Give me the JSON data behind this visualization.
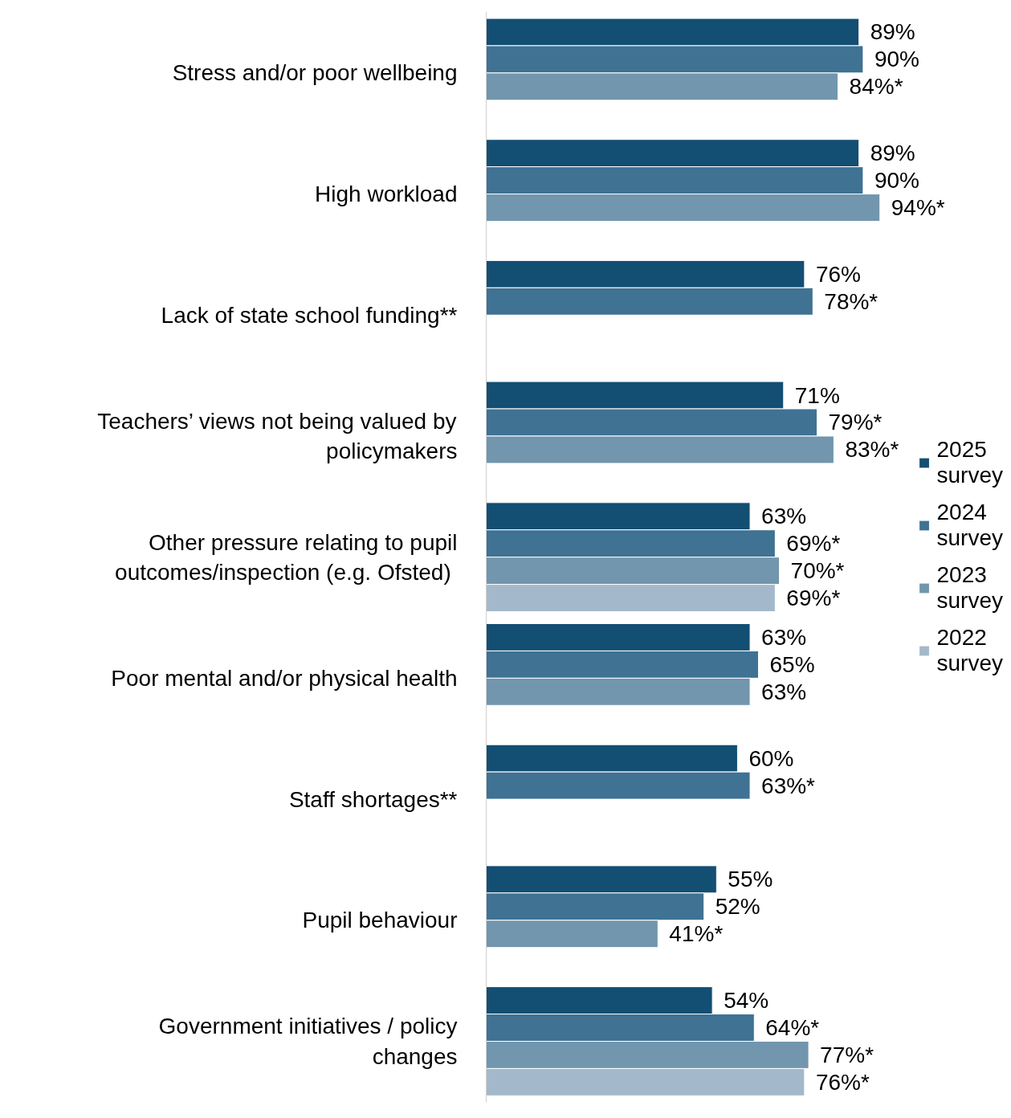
{
  "chart_data": {
    "type": "bar",
    "orientation": "horizontal",
    "categories": [
      "Stress and/or poor wellbeing",
      "High workload",
      "Lack of state school funding**",
      "Teachers’ views not being valued by policymakers",
      "Other pressure relating to pupil outcomes/inspection (e.g.  Ofsted)",
      "Poor mental and/or physical health",
      "Staff shortages**",
      "Pupil behaviour",
      "Government initiatives / policy changes"
    ],
    "series": [
      {
        "name": "2025 survey",
        "color": "#134e73",
        "values": [
          89,
          89,
          76,
          71,
          63,
          63,
          60,
          55,
          54
        ],
        "value_labels": [
          "89%",
          "89%",
          "76%",
          "71%",
          "63%",
          "63%",
          "60%",
          "55%",
          "54%"
        ]
      },
      {
        "name": "2024 survey",
        "color": "#3f7293",
        "values": [
          90,
          90,
          78,
          79,
          69,
          65,
          63,
          52,
          64
        ],
        "value_labels": [
          "90%",
          "90%",
          "78%*",
          "79%*",
          "69%*",
          "65%",
          "63%*",
          "52%",
          "64%*"
        ]
      },
      {
        "name": "2023 survey",
        "color": "#7196ae",
        "values": [
          84,
          94,
          null,
          83,
          70,
          63,
          null,
          41,
          77
        ],
        "value_labels": [
          "84%*",
          "94%*",
          null,
          "83%*",
          "70%*",
          "63%",
          null,
          "41%*",
          "77%*"
        ]
      },
      {
        "name": "2022 survey",
        "color": "#a3b9cb",
        "values": [
          null,
          null,
          null,
          null,
          69,
          null,
          null,
          null,
          76
        ],
        "value_labels": [
          null,
          null,
          null,
          null,
          "69%*",
          null,
          null,
          null,
          "76%*"
        ]
      }
    ],
    "grid": false,
    "legend": "right",
    "tick_labels": "y"
  }
}
